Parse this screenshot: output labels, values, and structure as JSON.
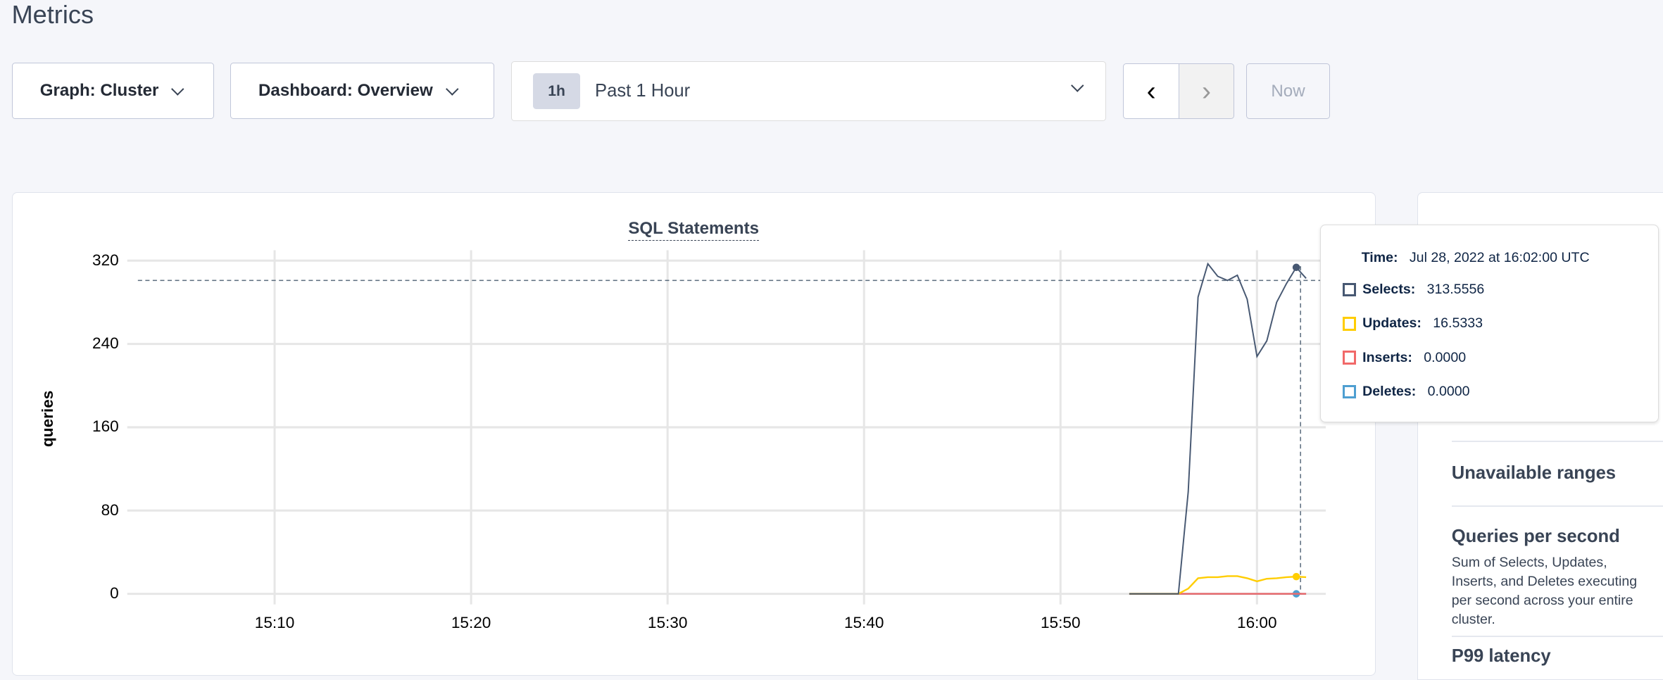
{
  "page_title": "Metrics",
  "toolbar": {
    "graph_label": "Graph: Cluster",
    "dashboard_label": "Dashboard: Overview",
    "time_badge": "1h",
    "time_label": "Past 1 Hour",
    "now_label": "Now"
  },
  "chart_data": {
    "type": "line",
    "title": "SQL Statements",
    "ylabel": "queries",
    "xlabel": "",
    "ylim": [
      0,
      330
    ],
    "xlim": [
      "15:02:30",
      "16:03:30"
    ],
    "y_ticks": [
      "0",
      "80",
      "160",
      "240",
      "320"
    ],
    "x_ticks": [
      "15:10",
      "15:20",
      "15:30",
      "15:40",
      "15:50",
      "16:00"
    ],
    "grid": true,
    "x": [
      "15:53:30",
      "15:54:00",
      "15:54:30",
      "15:55:00",
      "15:55:30",
      "15:56:00",
      "15:56:30",
      "15:57:00",
      "15:57:30",
      "15:58:00",
      "15:58:30",
      "15:59:00",
      "15:59:30",
      "16:00:00",
      "16:00:30",
      "16:01:00",
      "16:01:30",
      "16:02:00",
      "16:02:30"
    ],
    "series": [
      {
        "name": "Selects",
        "color": "#475872",
        "values": [
          0,
          0,
          0,
          0,
          0,
          0,
          98,
          285,
          317,
          305,
          301,
          306,
          283,
          228,
          243,
          280,
          298,
          313.5556,
          303
        ]
      },
      {
        "name": "Updates",
        "color": "#ffcd02",
        "values": [
          0,
          0,
          0,
          0,
          0,
          0,
          5,
          15,
          16,
          16,
          17,
          17,
          15,
          12,
          14.5,
          15,
          16,
          16.5333,
          16
        ]
      },
      {
        "name": "Inserts",
        "color": "#f16969",
        "values": [
          0,
          0,
          0,
          0,
          0,
          0,
          0,
          0,
          0,
          0,
          0,
          0,
          0,
          0,
          0,
          0,
          0,
          0,
          0
        ]
      },
      {
        "name": "Deletes",
        "color": "#4e9fd1",
        "values": [
          0,
          0,
          0,
          0,
          0,
          0,
          0,
          0,
          0,
          0,
          0,
          0,
          0,
          0,
          0,
          0,
          0,
          0,
          0
        ]
      }
    ],
    "crosshair": {
      "x": "16:02:00",
      "y": 301
    }
  },
  "tooltip": {
    "time_label": "Time:",
    "time_value": "Jul 28, 2022 at 16:02:00 UTC",
    "rows": [
      {
        "label": "Selects:",
        "value": "313.5556",
        "color": "#475872"
      },
      {
        "label": "Updates:",
        "value": "16.5333",
        "color": "#ffcd02"
      },
      {
        "label": "Inserts:",
        "value": "0.0000",
        "color": "#f16969"
      },
      {
        "label": "Deletes:",
        "value": "0.0000",
        "color": "#4e9fd1"
      }
    ]
  },
  "right_panel": {
    "unavailable": "Unavailable ranges",
    "qps_title": "Queries per second",
    "qps_desc": "Sum of Selects, Updates, Inserts, and Deletes executing per second across your entire cluster.",
    "p99": "P99 latency"
  }
}
